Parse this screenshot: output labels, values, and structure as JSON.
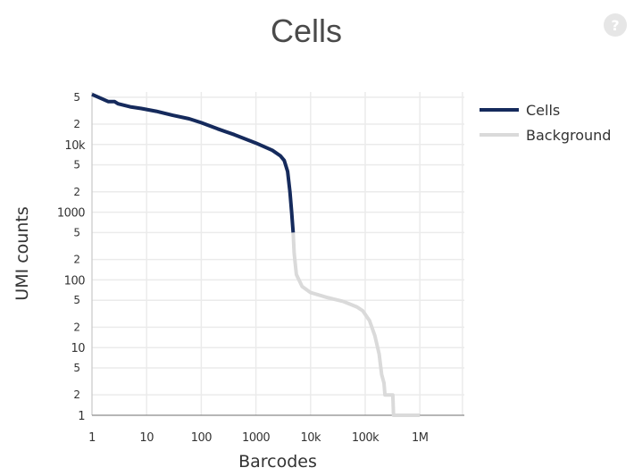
{
  "chart_data": {
    "type": "line",
    "title": "Cells",
    "xlabel": "Barcodes",
    "ylabel": "UMI counts",
    "x_scale": "log",
    "y_scale": "log",
    "xlim": [
      1,
      10000000
    ],
    "ylim": [
      1,
      60000
    ],
    "x_ticks": [
      {
        "value": 1,
        "label": "1"
      },
      {
        "value": 10,
        "label": "10"
      },
      {
        "value": 100,
        "label": "100"
      },
      {
        "value": 1000,
        "label": "1000"
      },
      {
        "value": 10000,
        "label": "10k"
      },
      {
        "value": 100000,
        "label": "100k"
      },
      {
        "value": 1000000,
        "label": "1M"
      }
    ],
    "y_major_ticks": [
      {
        "value": 1,
        "label": "1"
      },
      {
        "value": 10,
        "label": "10"
      },
      {
        "value": 100,
        "label": "100"
      },
      {
        "value": 1000,
        "label": "1000"
      },
      {
        "value": 10000,
        "label": "10k"
      }
    ],
    "y_minor_ticks": [
      {
        "value": 2,
        "label": "2"
      },
      {
        "value": 5,
        "label": "5"
      },
      {
        "value": 20,
        "label": "2"
      },
      {
        "value": 50,
        "label": "5"
      },
      {
        "value": 200,
        "label": "2"
      },
      {
        "value": 500,
        "label": "5"
      },
      {
        "value": 2000,
        "label": "2"
      },
      {
        "value": 5000,
        "label": "5"
      },
      {
        "value": 20000,
        "label": "2"
      },
      {
        "value": 50000,
        "label": "5"
      }
    ],
    "grid": true,
    "legend_position": "right",
    "series": [
      {
        "name": "Cells",
        "color": "#152a5c",
        "points": [
          [
            1,
            55000
          ],
          [
            2,
            43000
          ],
          [
            2.6,
            43000
          ],
          [
            3,
            40000
          ],
          [
            5,
            36000
          ],
          [
            8,
            34000
          ],
          [
            15,
            31000
          ],
          [
            30,
            27000
          ],
          [
            60,
            24000
          ],
          [
            100,
            21000
          ],
          [
            200,
            17000
          ],
          [
            400,
            14000
          ],
          [
            1000,
            10500
          ],
          [
            2000,
            8200
          ],
          [
            2800,
            6800
          ],
          [
            3300,
            5800
          ],
          [
            3800,
            4000
          ],
          [
            4200,
            2000
          ],
          [
            4500,
            1000
          ],
          [
            4800,
            500
          ]
        ]
      },
      {
        "name": "Background",
        "color": "#dadada",
        "points": [
          [
            4800,
            500
          ],
          [
            5000,
            250
          ],
          [
            5500,
            120
          ],
          [
            7000,
            80
          ],
          [
            10000,
            65
          ],
          [
            20000,
            55
          ],
          [
            40000,
            48
          ],
          [
            70000,
            40
          ],
          [
            90000,
            35
          ],
          [
            120000,
            25
          ],
          [
            150000,
            15
          ],
          [
            180000,
            8
          ],
          [
            200000,
            4
          ],
          [
            220000,
            3
          ],
          [
            230000,
            2
          ],
          [
            320000,
            2
          ],
          [
            330000,
            1
          ],
          [
            1000000,
            1
          ]
        ]
      }
    ]
  },
  "ui": {
    "help_glyph": "?"
  }
}
